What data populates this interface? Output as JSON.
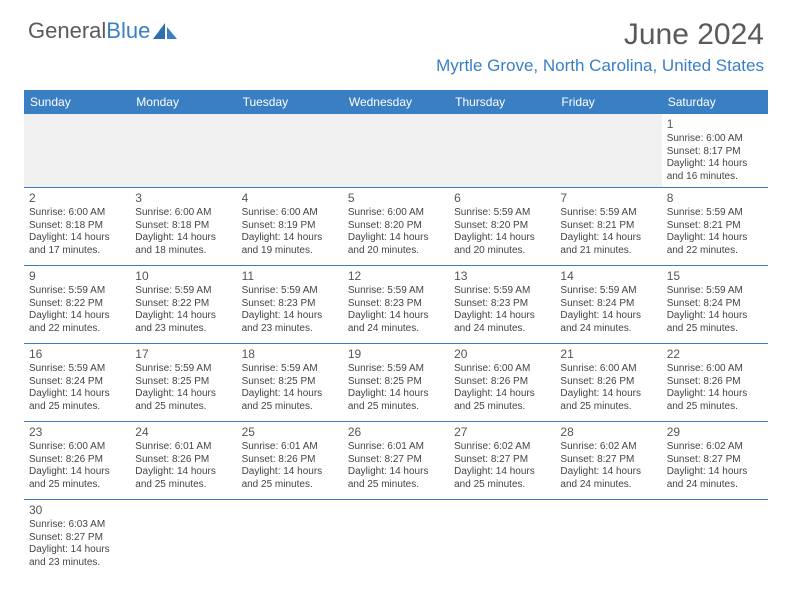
{
  "logo": {
    "text1": "General",
    "text2": "Blue"
  },
  "title": "June 2024",
  "location": "Myrtle Grove, North Carolina, United States",
  "colors": {
    "header_bg": "#3a7fc4",
    "header_text": "#ffffff",
    "accent": "#3a7fc4",
    "text": "#444444",
    "background": "#ffffff",
    "empty_bg": "#f0f0f0"
  },
  "day_headers": [
    "Sunday",
    "Monday",
    "Tuesday",
    "Wednesday",
    "Thursday",
    "Friday",
    "Saturday"
  ],
  "layout": {
    "first_weekday_index": 6,
    "days_in_month": 30
  },
  "weeks": [
    [
      null,
      null,
      null,
      null,
      null,
      null,
      {
        "n": 1,
        "sunrise": "6:00 AM",
        "sunset": "8:17 PM",
        "dl_h": 14,
        "dl_m": 16
      }
    ],
    [
      {
        "n": 2,
        "sunrise": "6:00 AM",
        "sunset": "8:18 PM",
        "dl_h": 14,
        "dl_m": 17
      },
      {
        "n": 3,
        "sunrise": "6:00 AM",
        "sunset": "8:18 PM",
        "dl_h": 14,
        "dl_m": 18
      },
      {
        "n": 4,
        "sunrise": "6:00 AM",
        "sunset": "8:19 PM",
        "dl_h": 14,
        "dl_m": 19
      },
      {
        "n": 5,
        "sunrise": "6:00 AM",
        "sunset": "8:20 PM",
        "dl_h": 14,
        "dl_m": 20
      },
      {
        "n": 6,
        "sunrise": "5:59 AM",
        "sunset": "8:20 PM",
        "dl_h": 14,
        "dl_m": 20
      },
      {
        "n": 7,
        "sunrise": "5:59 AM",
        "sunset": "8:21 PM",
        "dl_h": 14,
        "dl_m": 21
      },
      {
        "n": 8,
        "sunrise": "5:59 AM",
        "sunset": "8:21 PM",
        "dl_h": 14,
        "dl_m": 22
      }
    ],
    [
      {
        "n": 9,
        "sunrise": "5:59 AM",
        "sunset": "8:22 PM",
        "dl_h": 14,
        "dl_m": 22
      },
      {
        "n": 10,
        "sunrise": "5:59 AM",
        "sunset": "8:22 PM",
        "dl_h": 14,
        "dl_m": 23
      },
      {
        "n": 11,
        "sunrise": "5:59 AM",
        "sunset": "8:23 PM",
        "dl_h": 14,
        "dl_m": 23
      },
      {
        "n": 12,
        "sunrise": "5:59 AM",
        "sunset": "8:23 PM",
        "dl_h": 14,
        "dl_m": 24
      },
      {
        "n": 13,
        "sunrise": "5:59 AM",
        "sunset": "8:23 PM",
        "dl_h": 14,
        "dl_m": 24
      },
      {
        "n": 14,
        "sunrise": "5:59 AM",
        "sunset": "8:24 PM",
        "dl_h": 14,
        "dl_m": 24
      },
      {
        "n": 15,
        "sunrise": "5:59 AM",
        "sunset": "8:24 PM",
        "dl_h": 14,
        "dl_m": 25
      }
    ],
    [
      {
        "n": 16,
        "sunrise": "5:59 AM",
        "sunset": "8:24 PM",
        "dl_h": 14,
        "dl_m": 25
      },
      {
        "n": 17,
        "sunrise": "5:59 AM",
        "sunset": "8:25 PM",
        "dl_h": 14,
        "dl_m": 25
      },
      {
        "n": 18,
        "sunrise": "5:59 AM",
        "sunset": "8:25 PM",
        "dl_h": 14,
        "dl_m": 25
      },
      {
        "n": 19,
        "sunrise": "5:59 AM",
        "sunset": "8:25 PM",
        "dl_h": 14,
        "dl_m": 25
      },
      {
        "n": 20,
        "sunrise": "6:00 AM",
        "sunset": "8:26 PM",
        "dl_h": 14,
        "dl_m": 25
      },
      {
        "n": 21,
        "sunrise": "6:00 AM",
        "sunset": "8:26 PM",
        "dl_h": 14,
        "dl_m": 25
      },
      {
        "n": 22,
        "sunrise": "6:00 AM",
        "sunset": "8:26 PM",
        "dl_h": 14,
        "dl_m": 25
      }
    ],
    [
      {
        "n": 23,
        "sunrise": "6:00 AM",
        "sunset": "8:26 PM",
        "dl_h": 14,
        "dl_m": 25
      },
      {
        "n": 24,
        "sunrise": "6:01 AM",
        "sunset": "8:26 PM",
        "dl_h": 14,
        "dl_m": 25
      },
      {
        "n": 25,
        "sunrise": "6:01 AM",
        "sunset": "8:26 PM",
        "dl_h": 14,
        "dl_m": 25
      },
      {
        "n": 26,
        "sunrise": "6:01 AM",
        "sunset": "8:27 PM",
        "dl_h": 14,
        "dl_m": 25
      },
      {
        "n": 27,
        "sunrise": "6:02 AM",
        "sunset": "8:27 PM",
        "dl_h": 14,
        "dl_m": 25
      },
      {
        "n": 28,
        "sunrise": "6:02 AM",
        "sunset": "8:27 PM",
        "dl_h": 14,
        "dl_m": 24
      },
      {
        "n": 29,
        "sunrise": "6:02 AM",
        "sunset": "8:27 PM",
        "dl_h": 14,
        "dl_m": 24
      }
    ],
    [
      {
        "n": 30,
        "sunrise": "6:03 AM",
        "sunset": "8:27 PM",
        "dl_h": 14,
        "dl_m": 23
      },
      null,
      null,
      null,
      null,
      null,
      null
    ]
  ],
  "labels": {
    "sunrise_prefix": "Sunrise: ",
    "sunset_prefix": "Sunset: ",
    "daylight_prefix": "Daylight: ",
    "hours_word": " hours",
    "and_word": "and ",
    "minutes_word": " minutes."
  }
}
